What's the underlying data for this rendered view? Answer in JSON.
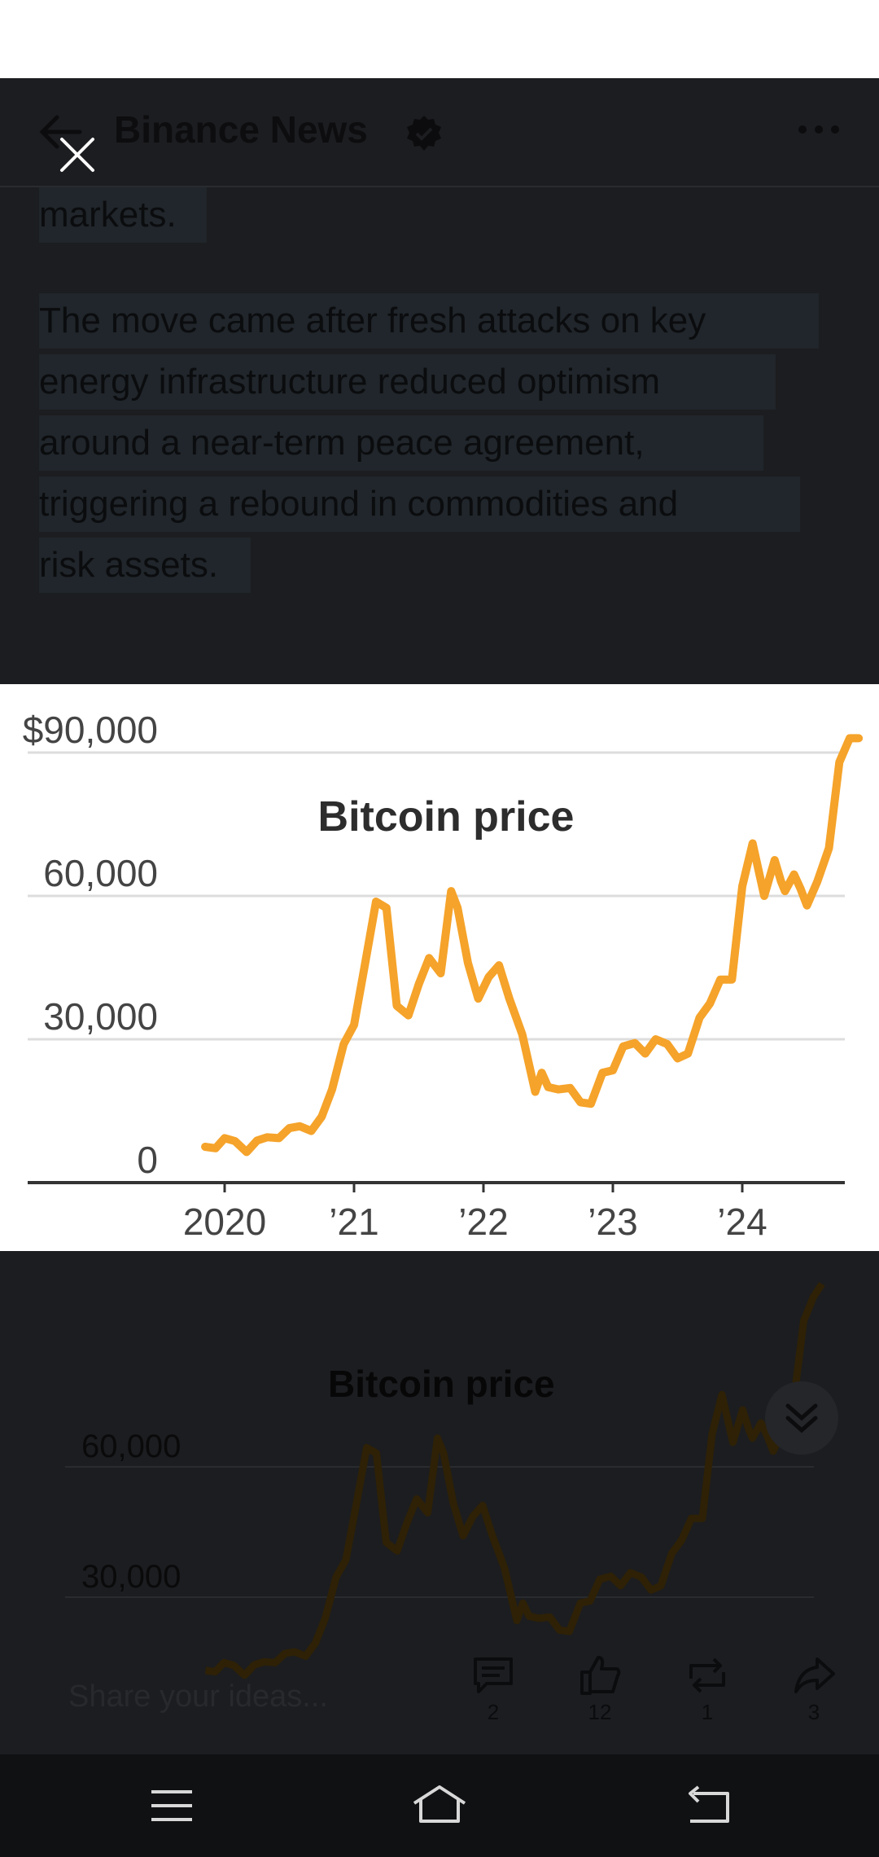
{
  "header": {
    "account_name": "Binance News"
  },
  "article": {
    "lines": [
      "markets.",
      "The move came after fresh attacks on key",
      "energy infrastructure reduced optimism",
      "around a near-term peace agreement,",
      "triggering a rebound in commodities and",
      "risk assets."
    ]
  },
  "background_chart": {
    "title": "Bitcoin price",
    "ytick_labels": [
      "$90,000",
      "60,000",
      "30,000",
      "0"
    ]
  },
  "chart_data": {
    "type": "line",
    "title": "Bitcoin price",
    "xlabel": "",
    "ylabel": "",
    "ylim": [
      0,
      90000
    ],
    "yticks": [
      0,
      30000,
      60000,
      90000
    ],
    "ytick_labels": [
      "0",
      "30,000",
      "60,000",
      "$90,000"
    ],
    "xticks": [
      2020,
      2021,
      2022,
      2023,
      2024
    ],
    "xtick_labels": [
      "2020",
      "’21",
      "’22",
      "’23",
      "’24"
    ],
    "series": [
      {
        "color": "#f5a32a",
        "x": [
          2019.85,
          2019.93,
          2020.0,
          2020.08,
          2020.17,
          2020.25,
          2020.33,
          2020.42,
          2020.5,
          2020.58,
          2020.67,
          2020.75,
          2020.83,
          2020.92,
          2021.0,
          2021.08,
          2021.17,
          2021.25,
          2021.33,
          2021.42,
          2021.5,
          2021.58,
          2021.67,
          2021.75,
          2021.8,
          2021.88,
          2021.96,
          2022.04,
          2022.12,
          2022.2,
          2022.3,
          2022.4,
          2022.45,
          2022.5,
          2022.58,
          2022.67,
          2022.75,
          2022.83,
          2022.92,
          2023.0,
          2023.08,
          2023.17,
          2023.25,
          2023.33,
          2023.42,
          2023.5,
          2023.58,
          2023.67,
          2023.75,
          2023.83,
          2023.92,
          2024.0,
          2024.08,
          2024.17,
          2024.25,
          2024.3,
          2024.33,
          2024.4,
          2024.45,
          2024.5,
          2024.58,
          2024.67,
          2024.75,
          2024.83,
          2024.9
        ],
        "y": [
          7500,
          7200,
          9300,
          8700,
          6400,
          8800,
          9500,
          9300,
          11400,
          11800,
          10800,
          13800,
          19500,
          29000,
          33000,
          45000,
          58800,
          57500,
          37000,
          35000,
          41500,
          47000,
          43800,
          61000,
          57500,
          46000,
          38500,
          43000,
          45500,
          38500,
          31000,
          19000,
          23000,
          20000,
          19500,
          19800,
          16800,
          16500,
          23000,
          23500,
          28500,
          29200,
          27000,
          30000,
          29000,
          26000,
          27000,
          34500,
          37500,
          42500,
          42500,
          62000,
          71000,
          60000,
          67500,
          63000,
          61000,
          64500,
          61500,
          58000,
          63000,
          70000,
          88000,
          93500,
          96500
        ]
      }
    ]
  },
  "actions": {
    "share_placeholder": "Share your ideas...",
    "comments": "2",
    "likes": "12",
    "reposts": "1",
    "shares": "3"
  }
}
